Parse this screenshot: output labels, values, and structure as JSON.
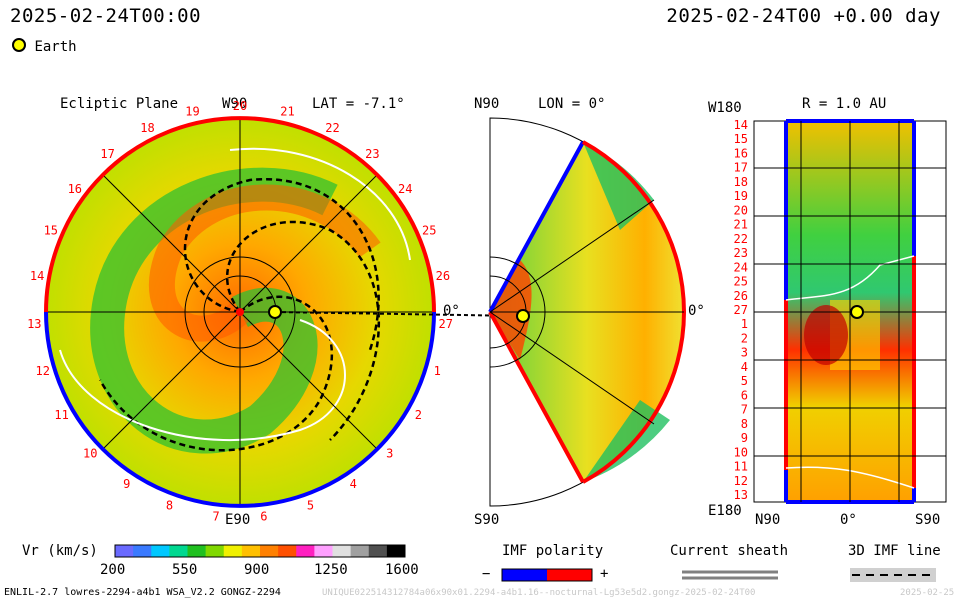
{
  "header": {
    "left_timestamp": "2025-02-24T00:00",
    "right_timestamp": "2025-02-24T00 +0.00 day",
    "earth_legend": "Earth"
  },
  "panels": {
    "ecliptic": {
      "title": "Ecliptic Plane",
      "top_label": "W90",
      "bottom_label": "E90",
      "right_label": "0°",
      "lat_label": "LAT = -7.1°",
      "hour_ticks": [
        "20",
        "21",
        "22",
        "23",
        "24",
        "25",
        "26",
        "27",
        "1",
        "2",
        "3",
        "4",
        "5",
        "6",
        "7",
        "8",
        "9",
        "10",
        "11",
        "12",
        "13",
        "14",
        "15",
        "16",
        "17",
        "18",
        "19"
      ]
    },
    "meridional": {
      "top_label": "N90",
      "bottom_label": "S90",
      "right_label": "0°",
      "lon_label": "LON = 0°"
    },
    "radial": {
      "title": "R = 1.0 AU",
      "top_left_label": "W180",
      "bottom_left_label": "E180",
      "x_labels": [
        "N90",
        "0°",
        "S90"
      ],
      "y_labels": [
        "14",
        "15",
        "16",
        "17",
        "18",
        "19",
        "20",
        "21",
        "22",
        "23",
        "24",
        "25",
        "26",
        "27",
        "1",
        "2",
        "3",
        "4",
        "5",
        "6",
        "7",
        "8",
        "9",
        "10",
        "11",
        "12",
        "13"
      ]
    }
  },
  "legend": {
    "vr_label": "Vr (km/s)",
    "vr_ticks": [
      "200",
      "550",
      "900",
      "1250",
      "1600"
    ],
    "imf_title": "IMF polarity",
    "imf_minus": "−",
    "imf_plus": "+",
    "sheath_title": "Current sheath",
    "imf_line_title": "3D IMF line"
  },
  "footer": {
    "model_info": "ENLIL-2.7 lowres-2294-a4b1 WSA_V2.2 GONGZ-2294",
    "run_id": "UNIQUE022514312784a06x90x01.2294-a4b1.16--nocturnal-Lg53e5d2.gongz-2025-02-24T00",
    "right_stamp": "2025-02-25"
  },
  "colors": {
    "positive": "#ff0000",
    "negative": "#0000ff",
    "earth": "#ffff00",
    "colorbar": [
      "#6a6aff",
      "#3a7aff",
      "#00c8ff",
      "#00d890",
      "#20c020",
      "#80d800",
      "#f0f000",
      "#ffc000",
      "#ff8000",
      "#ff5000",
      "#ff20c0",
      "#ffa0ff",
      "#e0e0e0",
      "#a0a0a0",
      "#505050",
      "#000000"
    ]
  },
  "chart_data": {
    "type": "heatmap",
    "quantity": "Vr (km/s)",
    "colorbar_range": [
      200,
      1600
    ],
    "colorbar_ticks": [
      200,
      550,
      900,
      1250,
      1600
    ],
    "earth_position": {
      "lat_deg": -7.1,
      "lon_deg": 0,
      "r_au": 1.0
    }
  }
}
